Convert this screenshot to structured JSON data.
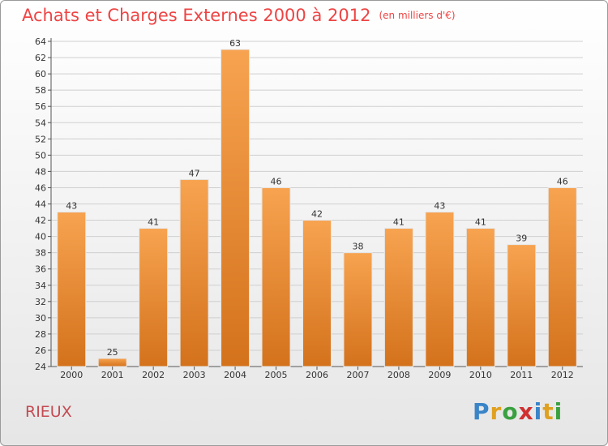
{
  "title": "Achats et Charges Externes 2000 à 2012",
  "subtitle": "(en milliers d'€)",
  "commune": "RIEUX",
  "logo": {
    "text": "Proxiti",
    "letters": [
      {
        "ch": "P",
        "color": "#3a84c8"
      },
      {
        "ch": "r",
        "color": "#e0a020"
      },
      {
        "ch": "o",
        "color": "#3aa040"
      },
      {
        "ch": "x",
        "color": "#d03030"
      },
      {
        "ch": "i",
        "color": "#3a84c8"
      },
      {
        "ch": "t",
        "color": "#e0a020"
      },
      {
        "ch": "i",
        "color": "#3aa040"
      }
    ]
  },
  "colors": {
    "title": "#ee4444",
    "bar_top": "#f7a350",
    "bar_bottom": "#d4721c",
    "grid": "#cfcfcf"
  },
  "chart_data": {
    "type": "bar",
    "title": "Achats et Charges Externes 2000 à 2012",
    "subtitle": "(en milliers d'€)",
    "categories": [
      "2000",
      "2001",
      "2002",
      "2003",
      "2004",
      "2005",
      "2006",
      "2007",
      "2008",
      "2009",
      "2010",
      "2011",
      "2012"
    ],
    "values": [
      43,
      25,
      41,
      47,
      63,
      46,
      42,
      38,
      41,
      43,
      41,
      39,
      46
    ],
    "ylim": [
      24,
      64
    ],
    "yticks": [
      24,
      26,
      28,
      30,
      32,
      34,
      36,
      38,
      40,
      42,
      44,
      46,
      48,
      50,
      52,
      54,
      56,
      58,
      60,
      62,
      64
    ],
    "grid": true,
    "data_labels": true
  }
}
